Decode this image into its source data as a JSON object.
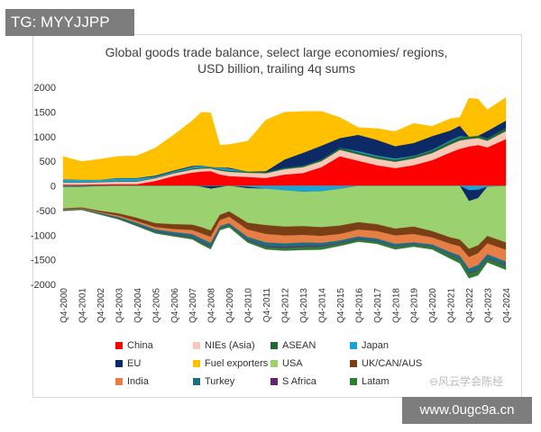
{
  "badge": "TG: MYYJJPP",
  "watermark_url": "www.0ugc9a.cn",
  "watermark_cn": "⊖风云学会陈经",
  "chart_data": {
    "type": "area",
    "stacked": true,
    "title": "Global goods trade balance, select large economies/ regions,",
    "subtitle": "USD billion, trailing 4q sums",
    "ylim": [
      -2000,
      2000
    ],
    "yticks": [
      2000,
      1500,
      1000,
      500,
      0,
      -500,
      -1000,
      -1500,
      -2000
    ],
    "xlabels": [
      "Q4-2000",
      "Q4-2001",
      "Q4-2002",
      "Q4-2003",
      "Q4-2004",
      "Q4-2005",
      "Q4-2006",
      "Q4-2007",
      "Q4-2008",
      "Q4-2009",
      "Q4-2010",
      "Q4-2011",
      "Q4-2012",
      "Q4-2013",
      "Q4-2014",
      "Q4-2015",
      "Q4-2016",
      "Q4-2017",
      "Q4-2018",
      "Q4-2019",
      "Q4-2020",
      "Q4-2021",
      "Q4-2022",
      "Q4-2023",
      "Q4-2024"
    ],
    "x": [
      2000,
      2001,
      2002,
      2003,
      2004,
      2005,
      2006,
      2007,
      2007.5,
      2008,
      2008.5,
      2009,
      2010,
      2011,
      2012,
      2013,
      2014,
      2015,
      2016,
      2017,
      2018,
      2019,
      2020,
      2021,
      2021.5,
      2022,
      2022.5,
      2023,
      2024
    ],
    "positive_series": [
      {
        "name": "China",
        "color": "#ff0000",
        "values": [
          25,
          25,
          30,
          35,
          35,
          100,
          200,
          270,
          290,
          300,
          230,
          200,
          180,
          160,
          230,
          260,
          380,
          600,
          510,
          420,
          360,
          420,
          520,
          680,
          750,
          800,
          830,
          780,
          950
        ]
      },
      {
        "name": "NIEs (Asia)",
        "color": "#f5c8b8",
        "values": [
          40,
          40,
          45,
          50,
          50,
          55,
          55,
          60,
          60,
          55,
          80,
          85,
          85,
          95,
          110,
          120,
          120,
          130,
          130,
          130,
          130,
          135,
          145,
          160,
          170,
          150,
          140,
          135,
          160
        ]
      },
      {
        "name": "ASEAN",
        "color": "#226633",
        "values": [
          10,
          10,
          10,
          15,
          15,
          15,
          20,
          25,
          25,
          20,
          25,
          25,
          25,
          25,
          25,
          30,
          35,
          40,
          45,
          45,
          45,
          45,
          55,
          65,
          70,
          50,
          50,
          50,
          65
        ]
      },
      {
        "name": "Japan",
        "color": "#1aa3d9",
        "values": [
          60,
          50,
          40,
          50,
          50,
          20,
          20,
          30,
          30,
          10,
          30,
          40,
          0,
          0,
          0,
          0,
          0,
          0,
          20,
          20,
          20,
          10,
          10,
          20,
          20,
          0,
          0,
          0,
          0
        ]
      },
      {
        "name": "EU",
        "color": "#0c2a66",
        "values": [
          0,
          0,
          0,
          10,
          10,
          20,
          20,
          20,
          10,
          0,
          10,
          20,
          0,
          20,
          170,
          260,
          280,
          200,
          330,
          320,
          250,
          260,
          280,
          200,
          210,
          0,
          0,
          150,
          150
        ]
      },
      {
        "name": "Fuel exporters",
        "color": "#ffc000",
        "values": [
          460,
          370,
          420,
          440,
          450,
          560,
          720,
          920,
          1080,
          1100,
          450,
          470,
          620,
          1040,
          960,
          840,
          700,
          420,
          150,
          230,
          300,
          400,
          200,
          240,
          170,
          780,
          740,
          430,
          470
        ]
      }
    ],
    "negative_series": [
      {
        "name": "Japan",
        "color": "#1aa3d9",
        "values": [
          0,
          0,
          0,
          0,
          0,
          0,
          0,
          0,
          0,
          0,
          0,
          0,
          -20,
          -60,
          -90,
          -120,
          -110,
          -60,
          0,
          0,
          0,
          0,
          0,
          0,
          0,
          -90,
          -80,
          -20,
          0
        ]
      },
      {
        "name": "EU",
        "color": "#0c2a66",
        "values": [
          -20,
          -20,
          -10,
          0,
          0,
          0,
          0,
          0,
          -20,
          -60,
          -30,
          0,
          -30,
          0,
          0,
          0,
          0,
          0,
          0,
          0,
          0,
          0,
          0,
          0,
          0,
          -220,
          -170,
          0,
          0
        ]
      },
      {
        "name": "USA",
        "color": "#9bd16e",
        "values": [
          -440,
          -420,
          -500,
          -560,
          -650,
          -760,
          -780,
          -790,
          -820,
          -850,
          -560,
          -520,
          -700,
          -740,
          -740,
          -700,
          -730,
          -750,
          -740,
          -780,
          -870,
          -830,
          -920,
          -1050,
          -1090,
          -970,
          -960,
          -1000,
          -1150
        ]
      },
      {
        "name": "UK/CAN/AUS",
        "color": "#7a3f14",
        "values": [
          -20,
          -20,
          -30,
          -50,
          -70,
          -80,
          -100,
          -110,
          -130,
          -130,
          -110,
          -110,
          -140,
          -180,
          -180,
          -180,
          -180,
          -170,
          -150,
          -140,
          -140,
          -150,
          -130,
          -130,
          -140,
          -170,
          -160,
          -150,
          -150
        ]
      },
      {
        "name": "India",
        "color": "#e67e45",
        "values": [
          -10,
          -10,
          -15,
          -25,
          -35,
          -45,
          -60,
          -80,
          -100,
          -120,
          -120,
          -130,
          -150,
          -170,
          -160,
          -150,
          -140,
          -130,
          -140,
          -150,
          -170,
          -170,
          -140,
          -170,
          -190,
          -230,
          -240,
          -220,
          -240
        ]
      },
      {
        "name": "Turkey",
        "color": "#1f6e80",
        "values": [
          -10,
          -10,
          -20,
          -30,
          -40,
          -50,
          -50,
          -60,
          -70,
          -70,
          -40,
          -40,
          -60,
          -80,
          -70,
          -70,
          -60,
          -50,
          -50,
          -55,
          -60,
          -40,
          -50,
          -60,
          -70,
          -90,
          -100,
          -80,
          -80
        ]
      },
      {
        "name": "S Africa",
        "color": "#5b2a6e",
        "values": [
          -2,
          -2,
          -3,
          -5,
          -8,
          -10,
          -12,
          -15,
          -15,
          -15,
          -10,
          -10,
          -15,
          -20,
          -25,
          -25,
          -20,
          -15,
          -15,
          -12,
          -10,
          -10,
          -10,
          -10,
          -10,
          -15,
          -15,
          -15,
          -15
        ]
      },
      {
        "name": "Latam",
        "color": "#2e7d32",
        "values": [
          -5,
          -5,
          -5,
          -10,
          -15,
          -20,
          -25,
          -30,
          -35,
          -40,
          -30,
          -30,
          -35,
          -40,
          -50,
          -55,
          -55,
          -45,
          -40,
          -40,
          -40,
          -35,
          -40,
          -60,
          -70,
          -90,
          -90,
          -70,
          -70
        ]
      }
    ],
    "legend": [
      {
        "label": "China",
        "color": "#ff0000"
      },
      {
        "label": "NIEs (Asia)",
        "color": "#f5c8b8"
      },
      {
        "label": "ASEAN",
        "color": "#226633"
      },
      {
        "label": "Japan",
        "color": "#1aa3d9"
      },
      {
        "label": "EU",
        "color": "#0c2a66"
      },
      {
        "label": "Fuel exporters",
        "color": "#ffc000"
      },
      {
        "label": "USA",
        "color": "#9bd16e"
      },
      {
        "label": "UK/CAN/AUS",
        "color": "#7a3f14"
      },
      {
        "label": "India",
        "color": "#e67e45"
      },
      {
        "label": "Turkey",
        "color": "#1f6e80"
      },
      {
        "label": "S Africa",
        "color": "#5b2a6e"
      },
      {
        "label": "Latam",
        "color": "#2e7d32"
      }
    ]
  }
}
